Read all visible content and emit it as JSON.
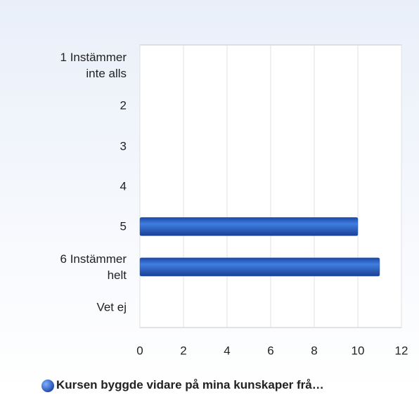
{
  "chart_data": {
    "type": "bar",
    "orientation": "horizontal",
    "categories": [
      "1 Instämmer inte alls",
      "2",
      "3",
      "4",
      "5",
      "6 Instämmer helt",
      "Vet ej"
    ],
    "series": [
      {
        "name": "Kursen byggde vidare på mina kunskaper frå…",
        "color": "#2a5fc4",
        "values": [
          0,
          0,
          0,
          0,
          10,
          11,
          0
        ]
      }
    ],
    "xlim": [
      0,
      12
    ],
    "xticks": [
      0,
      2,
      4,
      6,
      8,
      10,
      12
    ],
    "grid": true
  }
}
